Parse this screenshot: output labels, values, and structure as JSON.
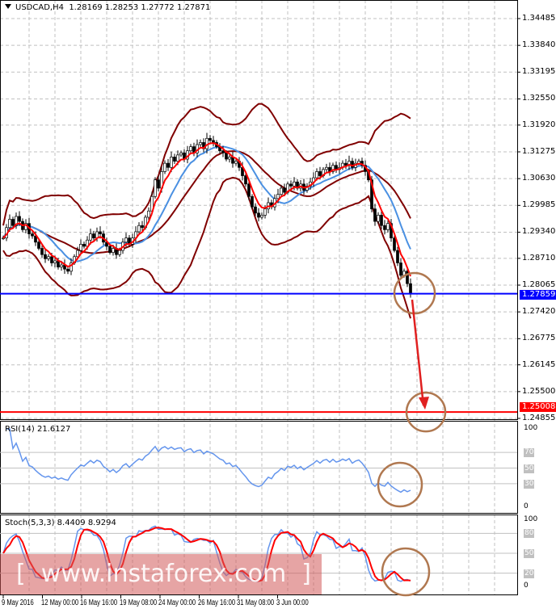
{
  "header": {
    "symbol": "USDCAD,H4",
    "open": "1.28169",
    "high": "1.28253",
    "low": "1.27772",
    "close": "1.27871"
  },
  "chart_data": [
    {
      "type": "candlestick",
      "title": "USDCAD,H4",
      "ylim": [
        1.24855,
        1.34485
      ],
      "price_ticks": [
        "1.34485",
        "1.33840",
        "1.33195",
        "1.32550",
        "1.31920",
        "1.31275",
        "1.30630",
        "1.29985",
        "1.29340",
        "1.28710",
        "1.28065",
        "1.27420",
        "1.26775",
        "1.26145",
        "1.25500",
        "1.24855"
      ],
      "time_ticks": [
        "9 May 2016",
        "12 May 00:00",
        "16 May 16:00",
        "19 May 08:00",
        "24 May 00:00",
        "26 May 16:00",
        "31 May 08:00",
        "3 Jun 00:00"
      ],
      "closes": [
        1.292,
        1.2945,
        1.2965,
        1.295,
        1.2972,
        1.296,
        1.294,
        1.2955,
        1.293,
        1.2925,
        1.291,
        1.2895,
        1.288,
        1.287,
        1.2875,
        1.286,
        1.2865,
        1.285,
        1.2855,
        1.2845,
        1.284,
        1.286,
        1.2875,
        1.289,
        1.2905,
        1.29,
        1.2915,
        1.293,
        1.292,
        1.2935,
        1.293,
        1.291,
        1.29,
        1.2885,
        1.2895,
        1.288,
        1.289,
        1.291,
        1.292,
        1.2905,
        1.292,
        1.2935,
        1.295,
        1.2945,
        1.297,
        1.2985,
        1.302,
        1.306,
        1.304,
        1.308,
        1.31,
        1.309,
        1.3115,
        1.3105,
        1.312,
        1.3125,
        1.311,
        1.313,
        1.314,
        1.3125,
        1.3145,
        1.315,
        1.3135,
        1.316,
        1.3155,
        1.315,
        1.314,
        1.313,
        1.3125,
        1.311,
        1.3115,
        1.31,
        1.3105,
        1.309,
        1.307,
        1.305,
        1.302,
        1.2995,
        1.298,
        1.297,
        1.2975,
        1.299,
        1.3005,
        1.2995,
        1.3015,
        1.3025,
        1.304,
        1.303,
        1.305,
        1.3045,
        1.3055,
        1.304,
        1.305,
        1.3035,
        1.3045,
        1.3055,
        1.3065,
        1.308,
        1.307,
        1.3085,
        1.309,
        1.308,
        1.3095,
        1.3085,
        1.309,
        1.31,
        1.3095,
        1.3105,
        1.309,
        1.31,
        1.3105,
        1.3095,
        1.308,
        1.306,
        1.299,
        1.296,
        1.2975,
        1.295,
        1.294,
        1.2955,
        1.292,
        1.289,
        1.286,
        1.283,
        1.284,
        1.281,
        1.2787
      ],
      "levels": [
        {
          "label": "1.27859",
          "value": 1.27859,
          "color": "#0000ff"
        },
        {
          "label": "1.25008",
          "value": 1.25008,
          "color": "#ff0000"
        }
      ],
      "projection_target": 1.25008,
      "colors": {
        "bollinger": "#800000",
        "fast_ma": "#ff0000",
        "slow_ma": "#4a90e2",
        "annotation": "#b07850"
      }
    },
    {
      "type": "line",
      "title": "RSI(14) 21.6127",
      "ylim": [
        0,
        100
      ],
      "levels": [
        "70",
        "50",
        "30"
      ],
      "axis_labels": [
        "100",
        "0"
      ],
      "last_value": 21.6127,
      "color": "#6495ed"
    },
    {
      "type": "line",
      "title": "Stoch(5,3,3) 8.4409 8.9294",
      "ylim": [
        0,
        100
      ],
      "levels": [
        "80",
        "50",
        "20"
      ],
      "axis_labels": [
        "100",
        "0"
      ],
      "series": [
        {
          "name": "main",
          "last_value": 8.4409,
          "color": "#6495ed"
        },
        {
          "name": "signal",
          "last_value": 8.9294,
          "color": "#ff0000"
        }
      ]
    }
  ],
  "watermark": "[  www.instaforex.com  ]"
}
